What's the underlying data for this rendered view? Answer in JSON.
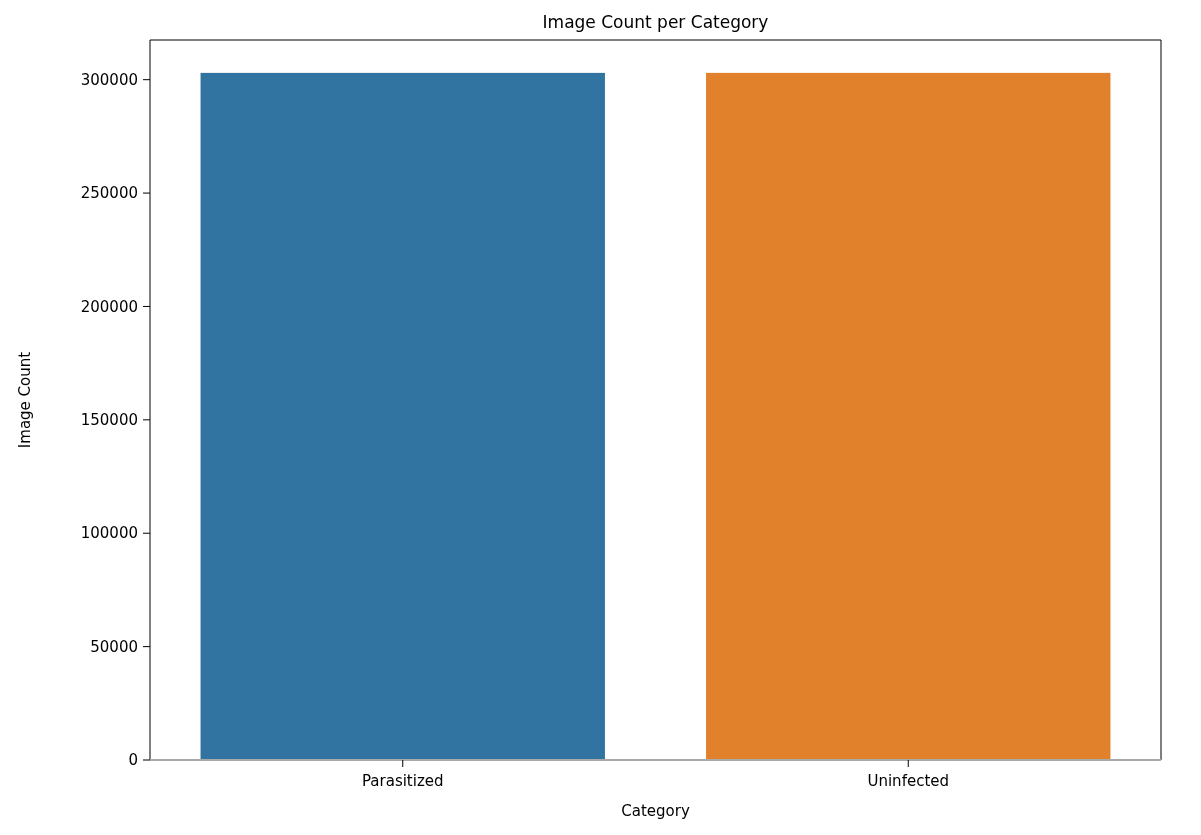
{
  "chart_data": {
    "type": "bar",
    "title": "Image Count per Category",
    "xlabel": "Category",
    "ylabel": "Image Count",
    "categories": [
      "Parasitized",
      "Uninfected"
    ],
    "values": [
      303000,
      303000
    ],
    "colors": [
      "#3274a1",
      "#e1812c"
    ],
    "ylim": [
      0,
      317500
    ],
    "yticks": [
      0,
      50000,
      100000,
      150000,
      200000,
      250000,
      300000
    ]
  }
}
